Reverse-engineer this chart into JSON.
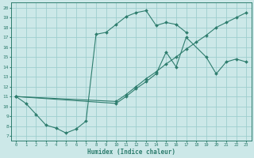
{
  "xlabel": "Humidex (Indice chaleur)",
  "background_color": "#cce8e8",
  "grid_color": "#9ecece",
  "line_color": "#2e7d6e",
  "xlim": [
    -0.5,
    23.5
  ],
  "ylim": [
    6.5,
    20.5
  ],
  "xticks": [
    0,
    1,
    2,
    3,
    4,
    5,
    6,
    7,
    8,
    9,
    10,
    11,
    12,
    13,
    14,
    15,
    16,
    17,
    18,
    19,
    20,
    21,
    22,
    23
  ],
  "yticks": [
    7,
    8,
    9,
    10,
    11,
    12,
    13,
    14,
    15,
    16,
    17,
    18,
    19,
    20
  ],
  "s1_x": [
    0,
    1,
    2,
    3,
    4,
    5,
    6,
    7,
    8,
    9,
    10,
    11,
    12,
    13,
    14,
    15,
    16,
    17
  ],
  "s1_y": [
    11.0,
    10.3,
    9.2,
    8.1,
    7.8,
    7.3,
    7.7,
    8.5,
    17.3,
    17.5,
    18.3,
    19.1,
    19.5,
    19.7,
    18.2,
    18.5,
    18.3,
    17.5
  ],
  "s2_x": [
    0,
    10,
    11,
    12,
    13,
    14,
    15,
    16,
    17,
    19,
    20,
    21,
    22,
    23
  ],
  "s2_y": [
    11.0,
    10.3,
    11.0,
    11.8,
    12.5,
    13.3,
    15.5,
    14.0,
    17.0,
    15.0,
    13.3,
    14.5,
    14.8,
    14.5
  ],
  "s3_x": [
    0,
    10,
    11,
    12,
    13,
    14,
    15,
    16,
    17,
    18,
    19,
    20,
    21,
    22,
    23
  ],
  "s3_y": [
    11.0,
    10.5,
    11.2,
    12.0,
    12.8,
    13.5,
    14.3,
    15.0,
    15.8,
    16.5,
    17.2,
    18.0,
    18.5,
    19.0,
    19.5
  ]
}
